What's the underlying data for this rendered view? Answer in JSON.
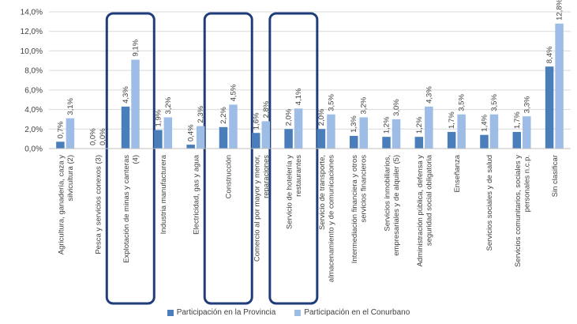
{
  "chart_data": {
    "type": "bar",
    "categories": [
      "Agricultura, ganadería, caza y silvicultura (2)",
      "Pesca y servicios conexos (3)",
      "Explotación de minas y canteras (4)",
      "Industria manufacturera",
      "Electricidad, gas y agua",
      "Construcción",
      "Comercio al por mayor y menor, reparaciones",
      "Servicio de hotelería y restaurantes",
      "Servicio de transporte, almacenamiento y de comunicaciones",
      "Intermediación financiera y otros servicios financieros",
      "Servicios inmobiliarios, empresariales y de alquiler (5)",
      "Administración pública, defensa y seguridad social obligatoria",
      "Enseñanza",
      "Servicios sociales y de salud",
      "Servicios comunitarios, sociales y personales n.c.p.",
      "Sin clasificar"
    ],
    "series": [
      {
        "name": "Participación en la Provincia",
        "color": "#4a7ebb",
        "values": [
          0.7,
          0.0,
          4.3,
          1.9,
          0.4,
          2.2,
          1.6,
          2.0,
          2.0,
          1.3,
          1.2,
          1.2,
          1.7,
          1.4,
          1.7,
          8.4
        ],
        "labels": [
          "0,7%",
          "0,0%",
          "4,3%",
          "1,9%",
          "0,4%",
          "2,2%",
          "1,6%",
          "2,0%",
          "2,0%",
          "1,3%",
          "1,2%",
          "1,2%",
          "1,7%",
          "1,4%",
          "1,7%",
          "8,4%"
        ]
      },
      {
        "name": "Participación en el Conurbano",
        "color": "#9dbde6",
        "values": [
          3.1,
          0.0,
          9.1,
          3.2,
          2.3,
          4.5,
          2.8,
          4.1,
          3.5,
          3.2,
          3.0,
          4.3,
          3.5,
          3.5,
          3.3,
          12.8
        ],
        "labels": [
          "3,1%",
          "0,0%",
          "9,1%",
          "3,2%",
          "2,3%",
          "4,5%",
          "2,8%",
          "4,1%",
          "3,5%",
          "3,2%",
          "3,0%",
          "4,3%",
          "3,5%",
          "3,5%",
          "3,3%",
          "12,8%"
        ]
      }
    ],
    "yticks": [
      0,
      2,
      4,
      6,
      8,
      10,
      12,
      14
    ],
    "ytick_labels": [
      "0,0%",
      "2,0%",
      "4,0%",
      "6,0%",
      "8,0%",
      "10,0%",
      "12,0%",
      "14,0%"
    ],
    "ylim": [
      0,
      14
    ],
    "grid": true,
    "legend_position": "bottom",
    "highlighted_categories": [
      2,
      5,
      7
    ],
    "highlight_color": "#1f3d7a"
  }
}
